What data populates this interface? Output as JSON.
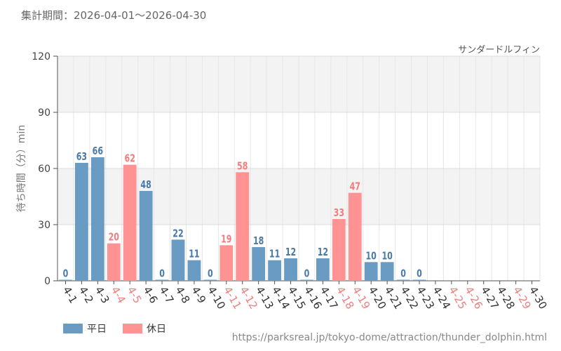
{
  "header": {
    "period": "集計期間：2026-04-01～2026-04-30"
  },
  "chart_data": {
    "type": "bar",
    "title": "サンダードルフィン",
    "ylabel": "待ち時間（分）min",
    "xlabel": "",
    "ylim": [
      0,
      120
    ],
    "yticks": [
      0,
      30,
      60,
      90,
      120
    ],
    "grid": true,
    "categories": [
      "4-1",
      "4-2",
      "4-3",
      "4-4",
      "4-5",
      "4-6",
      "4-7",
      "4-8",
      "4-9",
      "4-10",
      "4-11",
      "4-12",
      "4-13",
      "4-14",
      "4-15",
      "4-16",
      "4-17",
      "4-18",
      "4-19",
      "4-20",
      "4-21",
      "4-22",
      "4-23",
      "4-24",
      "4-25",
      "4-26",
      "4-27",
      "4-28",
      "4-29",
      "4-30"
    ],
    "values": [
      0,
      63,
      66,
      20,
      62,
      48,
      0,
      22,
      11,
      0,
      19,
      58,
      18,
      11,
      12,
      0,
      12,
      33,
      47,
      10,
      10,
      0,
      0,
      null,
      null,
      null,
      null,
      null,
      null,
      null
    ],
    "day_type": [
      "平日",
      "平日",
      "平日",
      "休日",
      "休日",
      "平日",
      "平日",
      "平日",
      "平日",
      "平日",
      "休日",
      "休日",
      "平日",
      "平日",
      "平日",
      "平日",
      "平日",
      "休日",
      "休日",
      "平日",
      "平日",
      "平日",
      "平日",
      "平日",
      "休日",
      "休日",
      "平日",
      "平日",
      "休日",
      "平日"
    ],
    "series": [
      {
        "name": "平日",
        "color": "#6a9bc3"
      },
      {
        "name": "休日",
        "color": "#ff9393"
      }
    ],
    "label_colors": {
      "平日": "#4a7aa8",
      "休日": "#f07e7e"
    },
    "legend_position": "bottom-left"
  },
  "legend": {
    "weekday": "平日",
    "holiday": "休日"
  },
  "footer": {
    "source": "https://parksreal.jp/tokyo-dome/attraction/thunder_dolphin.html"
  }
}
